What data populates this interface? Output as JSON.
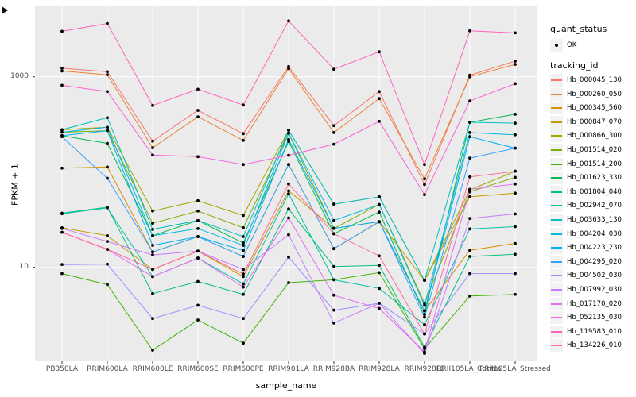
{
  "figure": {
    "y_axis_title": "FPKM + 1",
    "x_axis_title": "sample_name",
    "y_tick_labels": [
      "1000",
      "10"
    ]
  },
  "legend": {
    "quant_status_title": "quant_status",
    "ok_label": "OK",
    "ok_marker_icon": "point-marker",
    "tracking_title": "tracking_id"
  },
  "colors": {
    "panel_background": "#EBEBEB",
    "gridline": "#FFFFFF",
    "tick_text": "#4D4D4D",
    "tick_mark": "#333333",
    "point_marker": "#000000",
    "legend_key_background": "#F2F2F2"
  },
  "chart_data": {
    "type": "line",
    "title": "",
    "xlabel": "sample_name",
    "ylabel": "FPKM + 1",
    "yscale": "log10",
    "ylim": [
      1.05,
      5500
    ],
    "ytick_values": [
      10,
      1000
    ],
    "ygrid_major": [
      10,
      100,
      1000
    ],
    "grid": true,
    "legend_position": "right",
    "point_marker": "filled-circle-black",
    "categories": [
      "PB350LA",
      "RRIM600LA",
      "RRIM600LE",
      "RRIM600SE",
      "RRIM600PE",
      "RRIM901LA",
      "RRIM928BA",
      "RRIM928LA",
      "RRIM928LE",
      "RRII105LA_Control",
      "RRII105LA_Stressed"
    ],
    "series": [
      {
        "name": "Hb_000045_130",
        "color": "#F8766D",
        "values": [
          1230,
          1130,
          211,
          444,
          253,
          1280,
          307,
          700,
          74,
          1040,
          1460
        ]
      },
      {
        "name": "Hb_000260_050",
        "color": "#EA8331",
        "values": [
          1150,
          1050,
          180,
          380,
          215,
          1220,
          260,
          590,
          85,
          1000,
          1350
        ]
      },
      {
        "name": "Hb_000345_560",
        "color": "#D89000",
        "values": [
          110,
          113,
          14.5,
          21,
          13,
          120,
          15.7,
          30,
          3.5,
          15.1,
          17.8
        ]
      },
      {
        "name": "Hb_000847_070",
        "color": "#C09B00",
        "values": [
          26,
          21.5,
          9.5,
          14.8,
          8.0,
          63.5,
          25.6,
          30.2,
          7.3,
          55,
          60
        ]
      },
      {
        "name": "Hb_000866_300",
        "color": "#A3A500",
        "values": [
          278,
          295,
          39,
          50,
          35,
          275,
          46,
          55,
          7.3,
          65,
          102
        ]
      },
      {
        "name": "Hb_001514_020",
        "color": "#7CAE00",
        "values": [
          262,
          272,
          29,
          39,
          26,
          255,
          25.6,
          45.6,
          4.2,
          62,
          88
        ]
      },
      {
        "name": "Hb_001514_200",
        "color": "#39B600",
        "values": [
          8.6,
          6.6,
          1.35,
          2.8,
          1.6,
          6.9,
          7.4,
          8.8,
          1.4,
          5.0,
          5.2
        ]
      },
      {
        "name": "Hb_001623_330",
        "color": "#00BB4E",
        "values": [
          241,
          200,
          21.5,
          31,
          18,
          210,
          22.5,
          38,
          3.2,
          333,
          404
        ]
      },
      {
        "name": "Hb_001804_040",
        "color": "#00BF7D",
        "values": [
          37,
          42.7,
          5.3,
          7.1,
          5.2,
          41,
          10.2,
          10.5,
          1.45,
          13,
          13.7
        ]
      },
      {
        "name": "Hb_002942_070",
        "color": "#00C1A3",
        "values": [
          36.5,
          42,
          8.0,
          12.5,
          6.7,
          59,
          7.4,
          6.0,
          2.5,
          25.3,
          26.7
        ]
      },
      {
        "name": "Hb_003633_130",
        "color": "#00BFC4",
        "values": [
          278,
          372,
          25,
          31,
          21,
          275,
          46,
          55,
          7.3,
          333,
          326
        ]
      },
      {
        "name": "Hb_004204_030",
        "color": "#00BAE0",
        "values": [
          262,
          295,
          21.5,
          25.5,
          17,
          255,
          31,
          45.6,
          4.0,
          260,
          246
        ]
      },
      {
        "name": "Hb_004223_230",
        "color": "#00B0F6",
        "values": [
          241,
          272,
          17,
          21,
          15,
          220,
          25.6,
          30.2,
          3.5,
          235,
          178
        ]
      },
      {
        "name": "Hb_004295_020",
        "color": "#35A2FF",
        "values": [
          235,
          86,
          14.5,
          21,
          13,
          120,
          15.7,
          30.2,
          3.0,
          140,
          178
        ]
      },
      {
        "name": "Hb_004502_030",
        "color": "#9590FF",
        "values": [
          10.7,
          10.8,
          2.9,
          4.0,
          2.9,
          12.8,
          3.55,
          4.2,
          2.0,
          8.6,
          8.6
        ]
      },
      {
        "name": "Hb_007992_030",
        "color": "#C77CFF",
        "values": [
          25.6,
          18.7,
          13.5,
          14.8,
          9.5,
          22,
          2.6,
          4.2,
          1.25,
          32.6,
          36.3
        ]
      },
      {
        "name": "Hb_017170_020",
        "color": "#E76BF3",
        "values": [
          23.3,
          15.4,
          8.0,
          12.5,
          6.2,
          33,
          5.1,
          3.7,
          1.3,
          66,
          75
        ]
      },
      {
        "name": "Hb_052135_030",
        "color": "#FA62DB",
        "values": [
          815,
          700,
          151,
          145,
          120,
          150,
          196,
          341,
          58,
          558,
          847
        ]
      },
      {
        "name": "Hb_119583_010",
        "color": "#FF62BC",
        "values": [
          3000,
          3630,
          500,
          740,
          505,
          3860,
          1200,
          1830,
          120,
          3040,
          2890
        ]
      },
      {
        "name": "Hb_134226_010",
        "color": "#FF6A98",
        "values": [
          23.3,
          15.5,
          9.5,
          14.8,
          8.5,
          75,
          22.5,
          13.2,
          2.0,
          89,
          102
        ]
      }
    ]
  }
}
